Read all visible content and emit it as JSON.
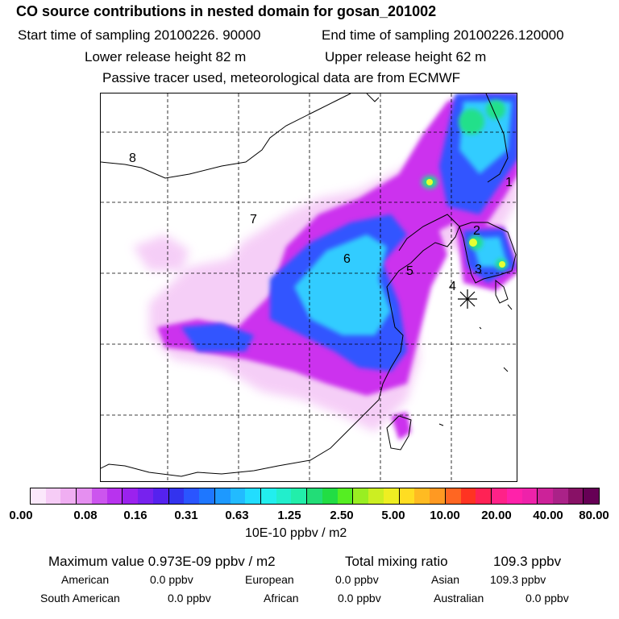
{
  "header": {
    "title": "CO  source contributions in nested domain for gosan_201002",
    "start_label": "Start time of sampling 20100226. 90000",
    "end_label": "End time of sampling 20100226.120000",
    "lower_height": "Lower release height   82 m",
    "upper_height": "Upper release height   62 m",
    "note": "Passive tracer used, meteorological data are from ECMWF"
  },
  "map": {
    "regions": [
      "8",
      "7",
      "6",
      "5",
      "4",
      "3",
      "2",
      "1"
    ],
    "colors": {
      "magenta": "#cc00ff",
      "blue": "#2f5bff",
      "cyan": "#33ddff",
      "green": "#22e08a",
      "yellow": "#e6ff33"
    }
  },
  "colorbar": {
    "ticks": [
      "0.00",
      "0.08",
      "0.16",
      "0.31",
      "0.63",
      "1.25",
      "2.50",
      "5.00",
      "10.00",
      "20.00",
      "40.00",
      "80.00"
    ],
    "unit": "10E-10 ppbv / m2",
    "colors": [
      "#fbe8fb",
      "#f6ccf6",
      "#f0aef2",
      "#e58ff0",
      "#cc55ee",
      "#b833ee",
      "#9b22ee",
      "#7722ee",
      "#5522ee",
      "#3333ee",
      "#2a55ff",
      "#1e77ff",
      "#1d99ff",
      "#22bbff",
      "#22ddff",
      "#22eeee",
      "#22eecc",
      "#22eeaa",
      "#22dd77",
      "#22dd44",
      "#55ee22",
      "#99ee22",
      "#ccee22",
      "#eeee22",
      "#ffdd22",
      "#ffbb22",
      "#ff9922",
      "#ff6622",
      "#ff3322",
      "#ff2255",
      "#ff2288",
      "#ff22aa",
      "#ee22aa",
      "#cc2299",
      "#aa2288",
      "#881166",
      "#660055"
    ]
  },
  "stats": {
    "max_label": "Maximum value  0.973E-09 ppbv / m2",
    "total_label": "Total mixing ratio",
    "total_value": "109.3 ppbv",
    "american_label": "American",
    "american_value": "0.0 ppbv",
    "european_label": "European",
    "european_value": "0.0 ppbv",
    "asian_label": "Asian",
    "asian_value": "109.3 ppbv",
    "south_american_label": "South American",
    "south_american_value": "0.0 ppbv",
    "african_label": "African",
    "african_value": "0.0 ppbv",
    "australian_label": "Australian",
    "australian_value": "0.0 ppbv"
  }
}
